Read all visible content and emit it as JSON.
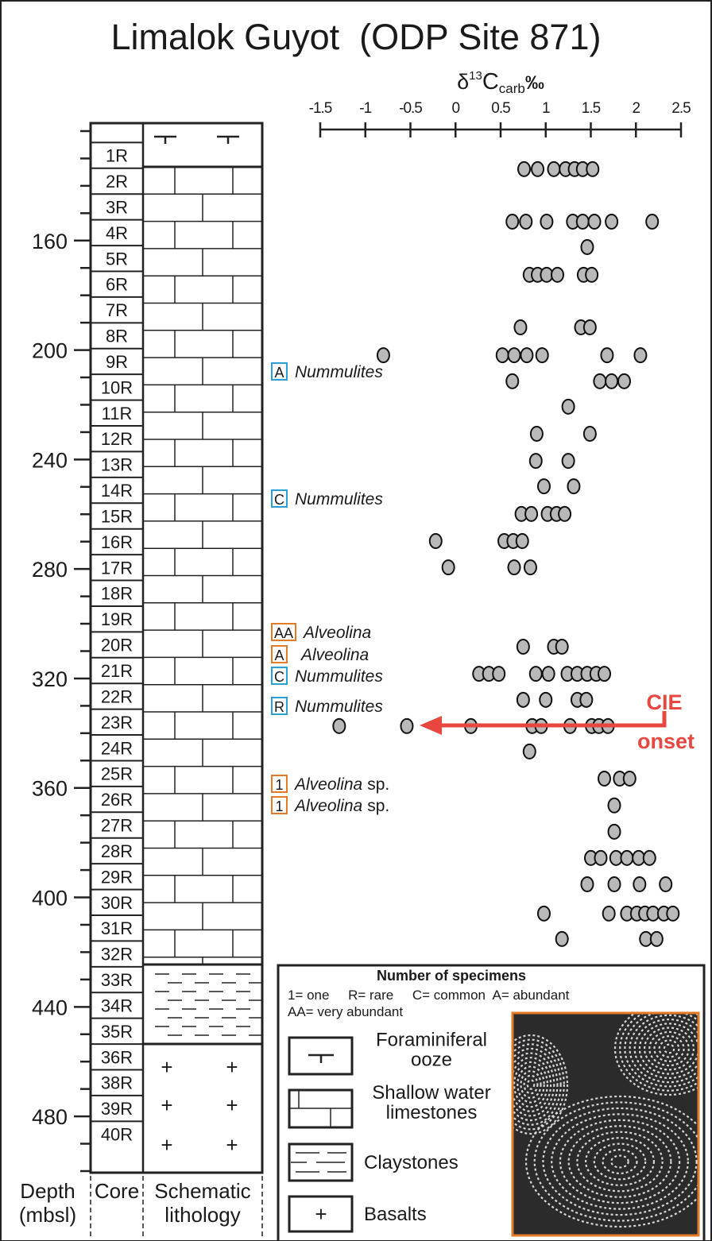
{
  "chart_data": {
    "type": "scatter",
    "title": "Limalok Guyot  (ODP Site 871)",
    "x_label": {
      "symbol": "δ",
      "sup": "13",
      "base": "C",
      "sub": "carb",
      "unit": "‰"
    },
    "xlim": [
      -1.5,
      2.5
    ],
    "xticks": [
      -1.5,
      -1,
      -0.5,
      0,
      0.5,
      1,
      1.5,
      2,
      2.5
    ],
    "ylim": [
      120,
      500
    ],
    "yticks": [
      160,
      200,
      240,
      280,
      320,
      360,
      400,
      440,
      480
    ],
    "yticks_minor": [
      120,
      130,
      140,
      150,
      170,
      180,
      190,
      210,
      220,
      230,
      250,
      260,
      270,
      290,
      300,
      310,
      330,
      340,
      350,
      370,
      380,
      390,
      410,
      420,
      430,
      450,
      460,
      470,
      490,
      500
    ],
    "color": "#b9b9b9",
    "x": [
      0.76,
      0.91,
      1.09,
      1.22,
      1.32,
      1.41,
      1.52,
      0.63,
      0.78,
      1.01,
      1.3,
      1.41,
      1.54,
      1.73,
      2.18,
      1.46,
      0.82,
      0.91,
      1.01,
      1.13,
      1.42,
      1.51,
      0.72,
      1.39,
      1.49,
      -0.8,
      0.52,
      0.65,
      0.79,
      0.96,
      1.68,
      2.05,
      0.63,
      1.6,
      1.73,
      1.87,
      1.25,
      0.9,
      1.49,
      0.89,
      1.25,
      0.98,
      1.31,
      0.73,
      0.84,
      1.02,
      1.12,
      1.21,
      -0.22,
      0.54,
      0.64,
      0.74,
      -0.08,
      0.65,
      0.83,
      0.75,
      1.09,
      1.18,
      0.26,
      0.37,
      0.48,
      0.89,
      1.03,
      1.24,
      1.35,
      1.46,
      1.56,
      1.65,
      0.75,
      1.0,
      1.35,
      1.45,
      -1.29,
      -0.54,
      0.17,
      0.85,
      0.95,
      1.27,
      1.51,
      1.59,
      1.69,
      0.82,
      1.65,
      1.82,
      1.93,
      1.76,
      1.76,
      1.5,
      1.61,
      1.78,
      1.9,
      2.03,
      2.15,
      1.46,
      1.76,
      2.04,
      2.33,
      0.98,
      1.7,
      1.9,
      2.01,
      2.1,
      2.19,
      2.31,
      2.41,
      1.18,
      2.11,
      2.23
    ],
    "values": [
      133.9,
      133.9,
      133.9,
      133.9,
      133.9,
      133.9,
      133.9,
      153.1,
      153.1,
      153.1,
      153.1,
      153.1,
      153.1,
      153.1,
      153.1,
      162.4,
      172.5,
      172.5,
      172.5,
      172.5,
      172.5,
      172.5,
      191.7,
      191.7,
      191.7,
      201.9,
      201.9,
      201.9,
      201.9,
      201.9,
      201.9,
      201.9,
      211.4,
      211.4,
      211.4,
      211.4,
      220.7,
      230.6,
      230.6,
      240.5,
      240.5,
      249.8,
      249.8,
      259.9,
      259.9,
      259.9,
      259.9,
      259.9,
      269.8,
      269.8,
      269.8,
      269.8,
      279.4,
      279.4,
      279.4,
      308.4,
      308.4,
      308.4,
      318.3,
      318.3,
      318.3,
      318.3,
      318.3,
      318.3,
      318.3,
      318.3,
      318.3,
      318.3,
      327.8,
      327.8,
      327.8,
      327.8,
      337.4,
      337.4,
      337.4,
      337.4,
      337.4,
      337.4,
      337.4,
      337.4,
      337.4,
      346.7,
      356.6,
      356.6,
      356.6,
      366.4,
      376,
      385.6,
      385.6,
      385.6,
      385.6,
      385.6,
      385.6,
      395.2,
      395.2,
      395.2,
      395.2,
      405.9,
      405.9,
      405.9,
      405.9,
      405.9,
      405.9,
      405.9,
      405.9,
      415.2,
      415.2,
      415.2
    ],
    "cores": [
      "1R",
      "2R",
      "3R",
      "4R",
      "5R",
      "6R",
      "7R",
      "8R",
      "9R",
      "10R",
      "11R",
      "12R",
      "13R",
      "14R",
      "15R",
      "16R",
      "17R",
      "18R",
      "19R",
      "20R",
      "21R",
      "22R",
      "23R",
      "24R",
      "25R",
      "26R",
      "27R",
      "28R",
      "29R",
      "30R",
      "31R",
      "32R",
      "33R",
      "34R",
      "35R",
      "36R",
      "38R",
      "39R",
      "40R"
    ],
    "column_headers": [
      [
        "Depth",
        "(mbsl)"
      ],
      [
        "Core"
      ],
      [
        "Schematic",
        "lithology"
      ]
    ],
    "annotations": [
      {
        "code": "A",
        "taxon": "Nummulites",
        "color": "#2a9fd6"
      },
      {
        "code": "C",
        "taxon": "Nummulites",
        "color": "#2a9fd6"
      },
      {
        "code": "AA",
        "taxon": "Alveolina",
        "color": "#e07b2a"
      },
      {
        "code": "A",
        "taxon": "Alveolina",
        "color": "#e07b2a"
      },
      {
        "code": "C",
        "taxon": "Nummulites",
        "color": "#2a9fd6"
      },
      {
        "code": "R",
        "taxon": "Nummulites",
        "color": "#2a9fd6"
      },
      {
        "code": "1",
        "taxon": "Alveolina",
        "suffix": "sp.",
        "color": "#e07b2a"
      },
      {
        "code": "1",
        "taxon": "Alveolina",
        "suffix": "sp.",
        "color": "#e07b2a"
      }
    ],
    "cie": {
      "lines": [
        "CIE",
        "onset"
      ],
      "color": "#e8473f"
    },
    "legend": {
      "title": "Number of specimens",
      "key_lines": [
        "1= one     R= rare     C= common  A= abundant",
        "AA= very abundant"
      ],
      "items": [
        [
          "Foraminiferal",
          "ooze"
        ],
        [
          "Shallow water",
          "limestones"
        ],
        [
          "Claystones"
        ],
        [
          "Basalts"
        ]
      ]
    }
  }
}
